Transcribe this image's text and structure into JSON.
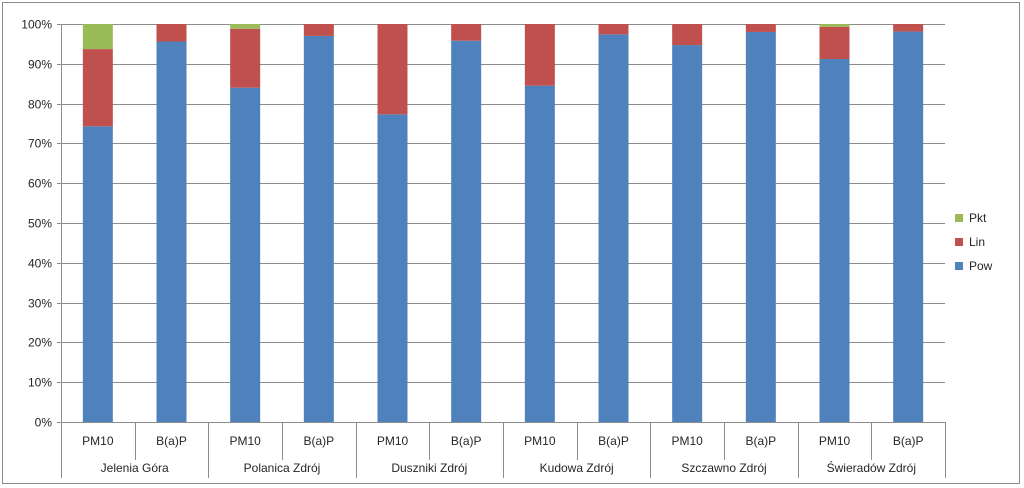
{
  "chart_data": {
    "type": "bar",
    "stacked": "percent",
    "groups": [
      "Jelenia Góra",
      "Polanica Zdrój",
      "Duszniki Zdrój",
      "Kudowa Zdrój",
      "Szczawno Zdrój",
      "Świeradów Zdrój"
    ],
    "categories": [
      "PM10",
      "B(a)P",
      "PM10",
      "B(a)P",
      "PM10",
      "B(a)P",
      "PM10",
      "B(a)P",
      "PM10",
      "B(a)P",
      "PM10",
      "B(a)P"
    ],
    "series": [
      {
        "name": "Pow",
        "color": "#4f81bd",
        "values": [
          74.3,
          95.6,
          84.0,
          97.0,
          77.3,
          95.8,
          84.5,
          97.4,
          94.7,
          98.0,
          91.2,
          98.1
        ]
      },
      {
        "name": "Lin",
        "color": "#c0504d",
        "values": [
          19.4,
          4.4,
          14.8,
          3.0,
          22.7,
          4.2,
          15.5,
          2.6,
          5.3,
          2.0,
          8.1,
          1.9
        ]
      },
      {
        "name": "Pkt",
        "color": "#9bbb59",
        "values": [
          6.3,
          0.0,
          1.2,
          0.0,
          0.0,
          0.0,
          0.0,
          0.0,
          0.0,
          0.0,
          0.7,
          0.0
        ]
      }
    ],
    "yticks": [
      "0%",
      "10%",
      "20%",
      "30%",
      "40%",
      "50%",
      "60%",
      "70%",
      "80%",
      "90%",
      "100%"
    ],
    "ylim": [
      0,
      100
    ],
    "grid": true,
    "legend_position": "right",
    "legend_order": [
      "Pkt",
      "Lin",
      "Pow"
    ],
    "title": "",
    "xlabel": "",
    "ylabel": ""
  }
}
